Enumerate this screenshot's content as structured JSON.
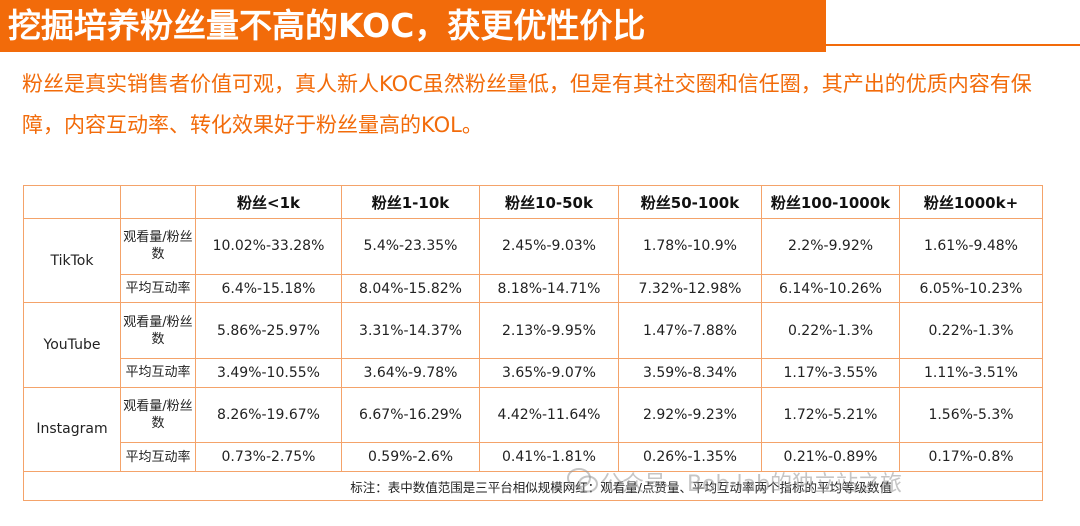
{
  "title": "挖掘培养粉丝量不高的KOC，获更优性价比",
  "intro": "粉丝是真实销售者价值可观，真人新人KOC虽然粉丝量低，但是有其社交圈和信任圈，其产出的优质内容有保障，内容互动率、转化效果好于粉丝量高的KOL。",
  "table": {
    "headers": [
      "粉丝<1k",
      "粉丝1-10k",
      "粉丝10-50k",
      "粉丝50-100k",
      "粉丝100-1000k",
      "粉丝1000k+"
    ],
    "platforms": [
      {
        "name": "TikTok",
        "rows": [
          {
            "metric": "观看量/粉丝数",
            "values": [
              "10.02%-33.28%",
              "5.4%-23.35%",
              "2.45%-9.03%",
              "1.78%-10.9%",
              "2.2%-9.92%",
              "1.61%-9.48%"
            ]
          },
          {
            "metric": "平均互动率",
            "values": [
              "6.4%-15.18%",
              "8.04%-15.82%",
              "8.18%-14.71%",
              "7.32%-12.98%",
              "6.14%-10.26%",
              "6.05%-10.23%"
            ]
          }
        ]
      },
      {
        "name": "YouTube",
        "rows": [
          {
            "metric": "观看量/粉丝数",
            "values": [
              "5.86%-25.97%",
              "3.31%-14.37%",
              "2.13%-9.95%",
              "1.47%-7.88%",
              "0.22%-1.3%",
              "0.22%-1.3%"
            ]
          },
          {
            "metric": "平均互动率",
            "values": [
              "3.49%-10.55%",
              "3.64%-9.78%",
              "3.65%-9.07%",
              "3.59%-8.34%",
              "1.17%-3.55%",
              "1.11%-3.51%"
            ]
          }
        ]
      },
      {
        "name": "Instagram",
        "rows": [
          {
            "metric": "观看量/粉丝数",
            "values": [
              "8.26%-19.67%",
              "6.67%-16.29%",
              "4.42%-11.64%",
              "2.92%-9.23%",
              "1.72%-5.21%",
              "1.56%-5.3%"
            ]
          },
          {
            "metric": "平均互动率",
            "values": [
              "0.73%-2.75%",
              "0.59%-2.6%",
              "0.41%-1.81%",
              "0.26%-1.35%",
              "0.21%-0.89%",
              "0.17%-0.8%"
            ]
          }
        ]
      }
    ],
    "note": "标注：表中数值范围是三平台相似规模网红：观看量/点赞量、平均互动率两个指标的平均等级数值"
  },
  "watermark": "公众号 · Bob·lab的独立站之旅",
  "colors": {
    "accent": "#f26b0a",
    "border": "#f4a36a"
  }
}
